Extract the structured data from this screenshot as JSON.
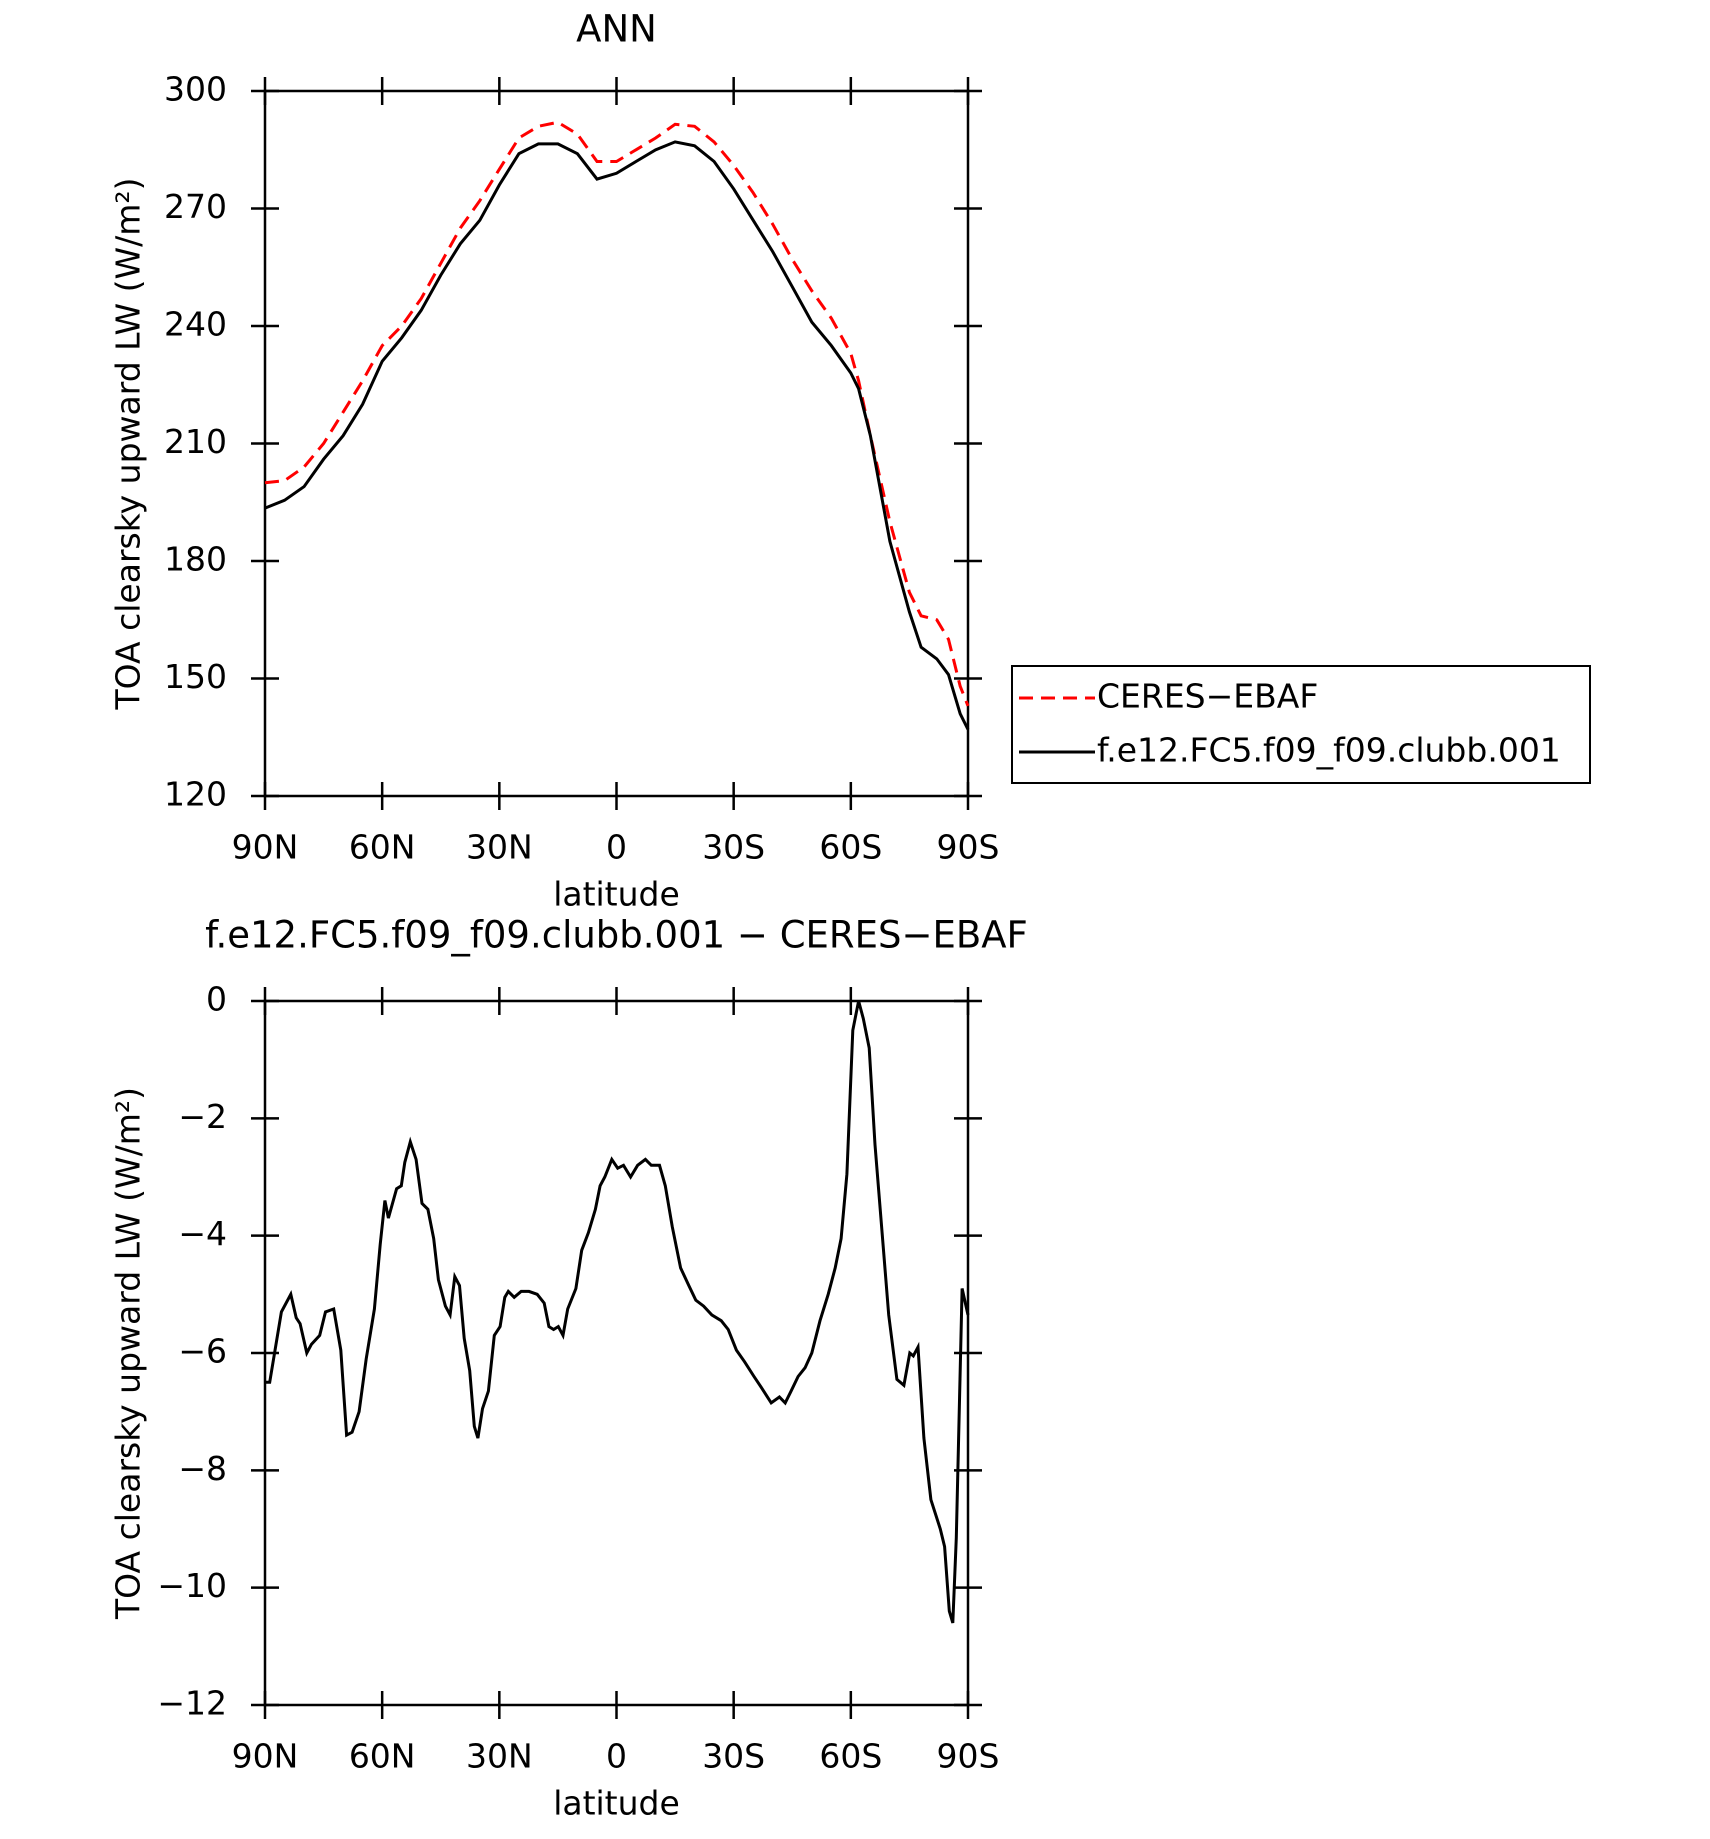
{
  "chart_data": [
    {
      "type": "line",
      "title": "ANN",
      "xlabel": "latitude",
      "ylabel": "TOA clearsky upward LW (W/m²)",
      "xlim": [
        90,
        -90
      ],
      "ylim": [
        120,
        300
      ],
      "xticks": [
        {
          "value": 90,
          "label": "90N"
        },
        {
          "value": 60,
          "label": "60N"
        },
        {
          "value": 30,
          "label": "30N"
        },
        0,
        {
          "value": -30,
          "label": "30S"
        },
        {
          "value": -60,
          "label": "60S"
        },
        {
          "value": -90,
          "label": "90S"
        }
      ],
      "yticks": [
        120,
        150,
        180,
        210,
        240,
        270,
        300
      ],
      "legend": "right",
      "series": [
        {
          "name": "CERES−EBAF",
          "color": "#ff0000",
          "style": "dashed",
          "x": [
            90,
            85,
            80,
            75,
            70,
            65,
            60,
            55,
            50,
            45,
            40,
            35,
            30,
            25,
            20,
            15,
            10,
            5,
            0,
            -5,
            -10,
            -15,
            -20,
            -25,
            -30,
            -35,
            -40,
            -45,
            -50,
            -55,
            -60,
            -62,
            -65,
            -70,
            -75,
            -78,
            -82,
            -85,
            -88,
            -90
          ],
          "values": [
            200,
            200.5,
            204,
            210,
            218,
            226,
            235,
            240,
            247,
            256,
            265,
            272,
            280,
            288,
            291,
            292,
            289,
            282,
            282,
            285,
            288,
            291.5,
            291,
            287,
            281,
            274,
            266,
            257,
            249,
            242,
            233,
            226,
            212,
            190,
            172,
            166,
            165,
            160,
            148,
            143
          ]
        },
        {
          "name": "f.e12.FC5.f09_f09.clubb.001",
          "color": "#000000",
          "style": "solid",
          "x": [
            90,
            85,
            80,
            75,
            70,
            65,
            60,
            55,
            50,
            45,
            40,
            35,
            30,
            25,
            20,
            15,
            10,
            5,
            0,
            -5,
            -10,
            -15,
            -20,
            -25,
            -30,
            -35,
            -40,
            -45,
            -50,
            -55,
            -60,
            -62,
            -65,
            -70,
            -75,
            -78,
            -82,
            -85,
            -88,
            -90
          ],
          "values": [
            193.5,
            195.5,
            199,
            206,
            212,
            220,
            231,
            237,
            244,
            253,
            261,
            267,
            276,
            284,
            286.5,
            286.5,
            284,
            277.5,
            279,
            282,
            285,
            287,
            286,
            282,
            275,
            267,
            259,
            250,
            241,
            235,
            228,
            224,
            212,
            185,
            167,
            158,
            155,
            151,
            141,
            137
          ]
        }
      ]
    },
    {
      "type": "line",
      "title": "f.e12.FC5.f09_f09.clubb.001 − CERES−EBAF",
      "xlabel": "latitude",
      "ylabel": "TOA clearsky upward LW (W/m²)",
      "xlim": [
        90,
        -90
      ],
      "ylim": [
        -12,
        0
      ],
      "xticks": [
        {
          "value": 90,
          "label": "90N"
        },
        {
          "value": 60,
          "label": "60N"
        },
        {
          "value": 30,
          "label": "30N"
        },
        0,
        {
          "value": -30,
          "label": "30S"
        },
        {
          "value": -60,
          "label": "60S"
        },
        {
          "value": -90,
          "label": "90S"
        }
      ],
      "yticks": [
        {
          "value": -12,
          "label": "−12"
        },
        {
          "value": -10,
          "label": "−10"
        },
        {
          "value": -8,
          "label": "−8"
        },
        {
          "value": -6,
          "label": "−6"
        },
        {
          "value": -4,
          "label": "−4"
        },
        {
          "value": -2,
          "label": "−2"
        },
        0
      ],
      "series": [
        {
          "color": "#000000",
          "style": "solid",
          "x": [
            90,
            88.8,
            85.8,
            83.4,
            82,
            81,
            79.3,
            78.1,
            76,
            74.5,
            72.4,
            70.6,
            69.1,
            67.7,
            65.9,
            64.1,
            62,
            60.5,
            59.3,
            58.4,
            56.3,
            55.1,
            54.2,
            52.8,
            51.3,
            49.8,
            48.3,
            46.8,
            45.6,
            43.8,
            42.6,
            41.4,
            40.2,
            39,
            37.6,
            36.4,
            35.5,
            34.3,
            32.8,
            31.3,
            29.8,
            28.6,
            27.7,
            26.2,
            24.4,
            22.4,
            20.3,
            18.5,
            17.3,
            16.1,
            14.9,
            13.7,
            12.5,
            10.4,
            8.9,
            7.2,
            5.4,
            4.2,
            3,
            1.2,
            -0.3,
            -1.8,
            -3.6,
            -5.4,
            -7.4,
            -8.9,
            -11,
            -12.5,
            -14.3,
            -16.4,
            -18.5,
            -20.3,
            -22.3,
            -24.4,
            -26.8,
            -28.6,
            -30.7,
            -32.8,
            -35.2,
            -37.2,
            -39.6,
            -41.7,
            -43.2,
            -44.7,
            -46.5,
            -48.3,
            -50,
            -52.1,
            -54.2,
            -56,
            -57.5,
            -59,
            -60.5,
            -62,
            -63.2,
            -64.7,
            -66.2,
            -68,
            -69.7,
            -71.8,
            -73.6,
            -75.1,
            -76,
            -77.2,
            -78.7,
            -80.5,
            -82.9,
            -84,
            -85.2,
            -86.1,
            -87,
            -88.5,
            -90
          ],
          "values": [
            -6.5,
            -6.5,
            -5.3,
            -5.0,
            -5.4,
            -5.5,
            -6.0,
            -5.85,
            -5.7,
            -5.3,
            -5.25,
            -5.95,
            -7.4,
            -7.35,
            -7.0,
            -6.1,
            -5.25,
            -4.15,
            -3.4,
            -3.7,
            -3.2,
            -3.15,
            -2.75,
            -2.4,
            -2.7,
            -3.45,
            -3.55,
            -4.05,
            -4.75,
            -5.2,
            -5.35,
            -4.7,
            -4.85,
            -5.75,
            -6.3,
            -7.25,
            -7.45,
            -6.95,
            -6.65,
            -5.7,
            -5.55,
            -5.05,
            -4.95,
            -5.05,
            -4.95,
            -4.95,
            -5.0,
            -5.15,
            -5.55,
            -5.6,
            -5.55,
            -5.7,
            -5.25,
            -4.9,
            -4.25,
            -3.95,
            -3.55,
            -3.15,
            -3.0,
            -2.7,
            -2.85,
            -2.8,
            -3.0,
            -2.8,
            -2.7,
            -2.8,
            -2.8,
            -3.15,
            -3.85,
            -4.55,
            -4.85,
            -5.1,
            -5.2,
            -5.35,
            -5.45,
            -5.6,
            -5.95,
            -6.15,
            -6.4,
            -6.6,
            -6.85,
            -6.75,
            -6.85,
            -6.65,
            -6.4,
            -6.25,
            -6.0,
            -5.45,
            -5.0,
            -4.55,
            -4.05,
            -2.95,
            -0.5,
            0,
            -0.3,
            -0.8,
            -2.45,
            -3.95,
            -5.35,
            -6.45,
            -6.55,
            -6.0,
            -6.05,
            -5.9,
            -7.45,
            -8.5,
            -9.0,
            -9.3,
            -10.4,
            -10.6,
            -9.15,
            -4.9,
            -5.35
          ]
        }
      ]
    }
  ]
}
